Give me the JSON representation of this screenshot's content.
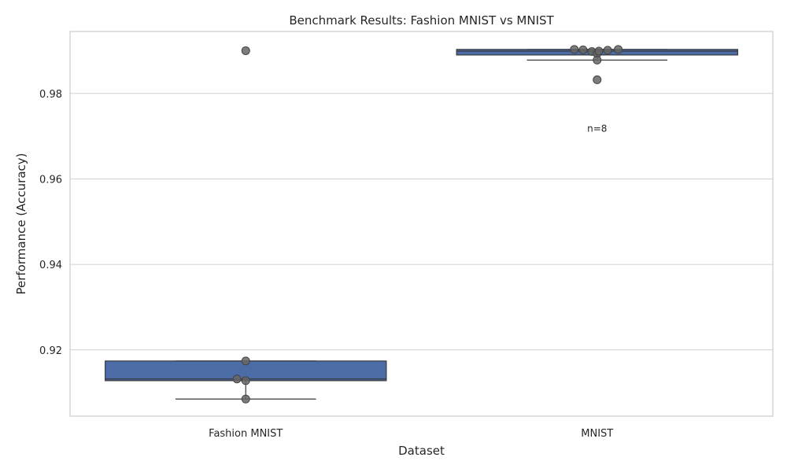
{
  "chart_data": {
    "type": "box",
    "title": "Benchmark Results: Fashion MNIST vs MNIST",
    "xlabel": "Dataset",
    "ylabel": "Performance (Accuracy)",
    "categories": [
      "Fashion MNIST",
      "MNIST"
    ],
    "ylim": [
      0.9045,
      0.9945
    ],
    "yticks": [
      0.92,
      0.94,
      0.96,
      0.98
    ],
    "ytick_labels": [
      "0.92",
      "0.94",
      "0.96",
      "0.98"
    ],
    "grid": true,
    "colors": {
      "box": "#4c6ca8",
      "box_edge": "#3a3a3a",
      "point": "#666666",
      "grid": "#d0d0d0",
      "frame": "#cccccc"
    },
    "boxes": [
      {
        "category": "Fashion MNIST",
        "q1": 0.9128,
        "median": 0.9132,
        "q3": 0.9174,
        "whisker_low": 0.9085,
        "whisker_high": 0.9174,
        "outliers": [
          0.99
        ]
      },
      {
        "category": "MNIST",
        "q1": 0.989,
        "median": 0.9899,
        "q3": 0.9903,
        "whisker_low": 0.9878,
        "whisker_high": 0.9903,
        "outliers": [
          0.9832
        ]
      }
    ],
    "points": [
      {
        "category": "Fashion MNIST",
        "values": [
          0.99,
          0.9174,
          0.9132,
          0.9128,
          0.9085
        ],
        "jitter": [
          0,
          0,
          -0.05,
          0,
          0
        ]
      },
      {
        "category": "MNIST",
        "values": [
          0.9903,
          0.9902,
          0.9898,
          0.9893,
          0.9899,
          0.9901,
          0.9878,
          0.9832
        ],
        "jitter": [
          -0.13,
          -0.08,
          -0.03,
          0,
          0.01,
          0.06,
          0,
          0
        ],
        "jitter_high": [
          0.12
        ]
      }
    ],
    "annotations": [
      {
        "category": "MNIST",
        "text": "n=8",
        "y": 0.9718
      }
    ]
  }
}
